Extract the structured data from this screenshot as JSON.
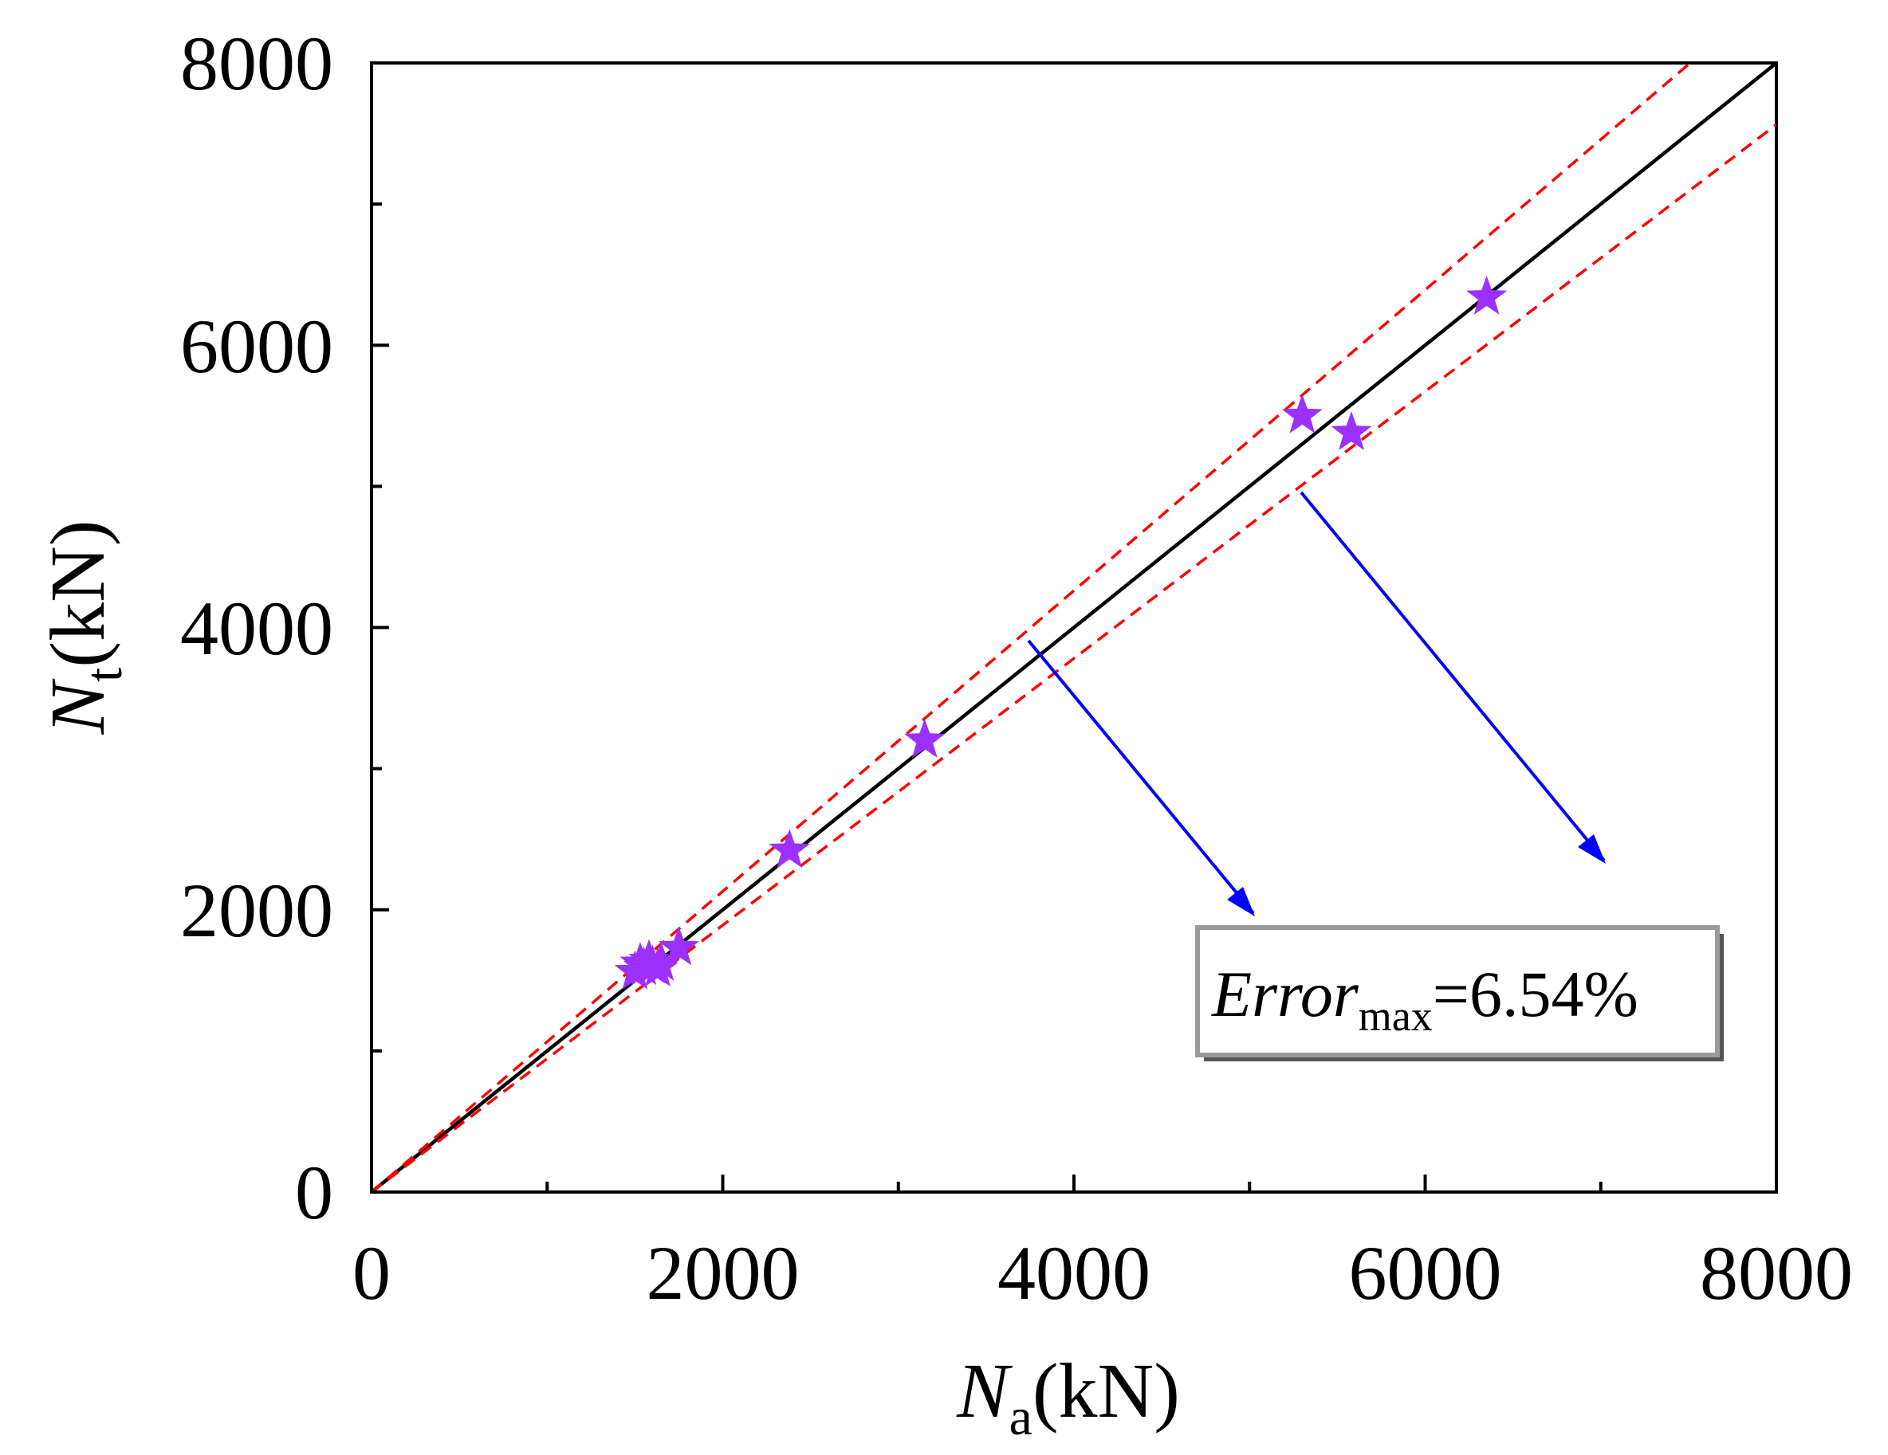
{
  "chart_data": {
    "type": "scatter",
    "xlabel": {
      "main": "N",
      "sub": "a",
      "unit": "(kN)"
    },
    "ylabel": {
      "main": "N",
      "sub": "t",
      "unit": "(kN)"
    },
    "xlim": [
      0,
      8000
    ],
    "ylim": [
      0,
      8000
    ],
    "xticks": [
      "0",
      "2000",
      "4000",
      "6000",
      "8000"
    ],
    "yticks": [
      "0",
      "2000",
      "4000",
      "6000",
      "8000"
    ],
    "grid": false,
    "series": [
      {
        "marker": "star",
        "color": "#9b30ff",
        "points": [
          {
            "x": 1500,
            "y": 1560
          },
          {
            "x": 1530,
            "y": 1620
          },
          {
            "x": 1550,
            "y": 1590
          },
          {
            "x": 1580,
            "y": 1640
          },
          {
            "x": 1600,
            "y": 1600
          },
          {
            "x": 1630,
            "y": 1580
          },
          {
            "x": 1650,
            "y": 1620
          },
          {
            "x": 1750,
            "y": 1730
          },
          {
            "x": 2380,
            "y": 2420
          },
          {
            "x": 3150,
            "y": 3200
          },
          {
            "x": 5300,
            "y": 5500
          },
          {
            "x": 5580,
            "y": 5380
          },
          {
            "x": 6350,
            "y": 6340
          }
        ]
      }
    ],
    "reference_lines": [
      {
        "style": "solid",
        "color": "#000000",
        "slope": 1.0
      },
      {
        "style": "dashed",
        "color": "#ff0000",
        "slope": 1.0654
      },
      {
        "style": "dashed",
        "color": "#ff0000",
        "slope": 0.9454
      }
    ],
    "annotation": {
      "italic": "Error",
      "sub": "max",
      "text": "=6.54%"
    },
    "arrow_color": "#0000ff"
  }
}
